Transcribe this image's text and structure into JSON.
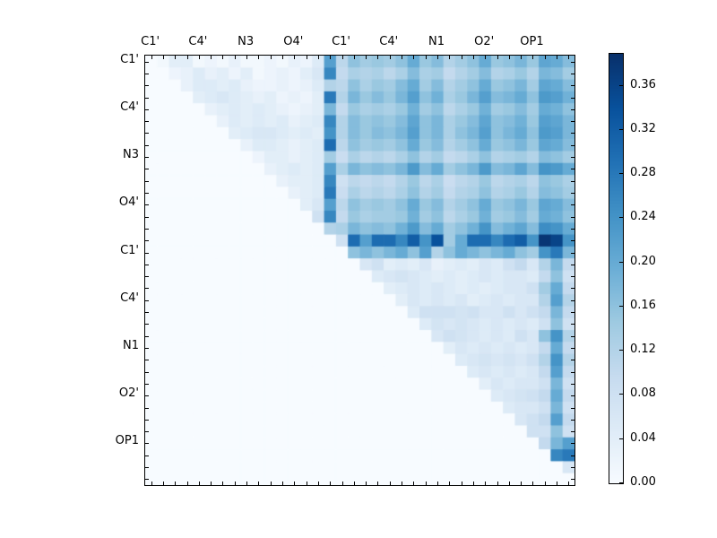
{
  "figure": {
    "background": "#ffffff",
    "frame_color": "#000000",
    "colormap_min_color": "#f7fbff",
    "colormap_max_color": "#08306b"
  },
  "chart_data": {
    "type": "heatmap",
    "title": "",
    "xlabel": "",
    "ylabel": "",
    "colormap": "Blues",
    "vmin": 0.0,
    "vmax": 0.389,
    "grid_size": 36,
    "label_every": 4,
    "axis_labels": [
      "C1'",
      "C4'",
      "N3",
      "O4'",
      "C1'",
      "C4'",
      "N1",
      "O2'",
      "OP1"
    ],
    "colorbar_tick_labels": [
      "0.00",
      "0.04",
      "0.08",
      "0.12",
      "0.16",
      "0.20",
      "0.24",
      "0.28",
      "0.32",
      "0.36"
    ],
    "colorbar_tick_values": [
      0.0,
      0.04,
      0.08,
      0.12,
      0.16,
      0.2,
      0.24,
      0.28,
      0.32,
      0.36
    ],
    "matrix": [
      [
        0,
        0.01,
        0.04,
        0.04,
        0.01,
        0.02,
        0.01,
        0.03,
        0.01,
        0.01,
        0.02,
        0.01,
        0.03,
        0.02,
        0.05,
        0.22,
        0.11,
        0.16,
        0.14,
        0.15,
        0.14,
        0.16,
        0.2,
        0.15,
        0.17,
        0.12,
        0.14,
        0.16,
        0.2,
        0.15,
        0.16,
        0.18,
        0.15,
        0.21,
        0.2,
        0.17
      ],
      [
        0,
        0,
        0.02,
        0.03,
        0.05,
        0.03,
        0.04,
        0.02,
        0.04,
        0.01,
        0.02,
        0.03,
        0.02,
        0.04,
        0.06,
        0.26,
        0.1,
        0.13,
        0.12,
        0.13,
        0.11,
        0.13,
        0.17,
        0.13,
        0.14,
        0.1,
        0.12,
        0.14,
        0.17,
        0.12,
        0.13,
        0.15,
        0.12,
        0.18,
        0.17,
        0.14
      ],
      [
        0,
        0,
        0,
        0.03,
        0.05,
        0.05,
        0.04,
        0.05,
        0.03,
        0.02,
        0.02,
        0.03,
        0.02,
        0.03,
        0.05,
        0.12,
        0.11,
        0.16,
        0.13,
        0.15,
        0.14,
        0.17,
        0.2,
        0.14,
        0.17,
        0.12,
        0.14,
        0.16,
        0.2,
        0.15,
        0.16,
        0.18,
        0.14,
        0.21,
        0.2,
        0.17
      ],
      [
        0,
        0,
        0,
        0,
        0.04,
        0.05,
        0.06,
        0.05,
        0.04,
        0.03,
        0.04,
        0.02,
        0.03,
        0.02,
        0.04,
        0.28,
        0.12,
        0.18,
        0.15,
        0.17,
        0.15,
        0.18,
        0.22,
        0.16,
        0.19,
        0.13,
        0.15,
        0.18,
        0.22,
        0.17,
        0.18,
        0.2,
        0.16,
        0.23,
        0.22,
        0.19
      ],
      [
        0,
        0,
        0,
        0,
        0,
        0.03,
        0.04,
        0.05,
        0.04,
        0.05,
        0.04,
        0.03,
        0.02,
        0.03,
        0.04,
        0.18,
        0.1,
        0.15,
        0.13,
        0.14,
        0.13,
        0.15,
        0.19,
        0.14,
        0.16,
        0.11,
        0.13,
        0.15,
        0.19,
        0.14,
        0.15,
        0.17,
        0.14,
        0.2,
        0.19,
        0.16
      ],
      [
        0,
        0,
        0,
        0,
        0,
        0,
        0.03,
        0.05,
        0.04,
        0.05,
        0.04,
        0.05,
        0.03,
        0.04,
        0.05,
        0.26,
        0.12,
        0.17,
        0.15,
        0.16,
        0.15,
        0.17,
        0.21,
        0.16,
        0.18,
        0.13,
        0.15,
        0.17,
        0.21,
        0.16,
        0.17,
        0.19,
        0.15,
        0.22,
        0.21,
        0.18
      ],
      [
        0,
        0,
        0,
        0,
        0,
        0,
        0,
        0.04,
        0.05,
        0.06,
        0.06,
        0.05,
        0.04,
        0.05,
        0.04,
        0.24,
        0.12,
        0.17,
        0.15,
        0.17,
        0.16,
        0.18,
        0.22,
        0.16,
        0.18,
        0.13,
        0.16,
        0.18,
        0.22,
        0.16,
        0.18,
        0.2,
        0.16,
        0.23,
        0.22,
        0.18
      ],
      [
        0,
        0,
        0,
        0,
        0,
        0,
        0,
        0,
        0.03,
        0.05,
        0.05,
        0.04,
        0.03,
        0.04,
        0.05,
        0.3,
        0.11,
        0.16,
        0.14,
        0.15,
        0.14,
        0.16,
        0.2,
        0.15,
        0.17,
        0.12,
        0.14,
        0.16,
        0.2,
        0.15,
        0.16,
        0.18,
        0.15,
        0.21,
        0.2,
        0.17
      ],
      [
        0,
        0,
        0,
        0,
        0,
        0,
        0,
        0,
        0,
        0.02,
        0.04,
        0.04,
        0.03,
        0.04,
        0.05,
        0.14,
        0.09,
        0.13,
        0.11,
        0.12,
        0.11,
        0.13,
        0.16,
        0.12,
        0.14,
        0.1,
        0.11,
        0.13,
        0.16,
        0.12,
        0.13,
        0.14,
        0.12,
        0.17,
        0.16,
        0.14
      ],
      [
        0,
        0,
        0,
        0,
        0,
        0,
        0,
        0,
        0,
        0,
        0.03,
        0.04,
        0.05,
        0.04,
        0.05,
        0.22,
        0.13,
        0.18,
        0.16,
        0.17,
        0.16,
        0.18,
        0.23,
        0.17,
        0.2,
        0.14,
        0.16,
        0.18,
        0.23,
        0.17,
        0.18,
        0.21,
        0.17,
        0.24,
        0.23,
        0.2
      ],
      [
        0,
        0,
        0,
        0,
        0,
        0,
        0,
        0,
        0,
        0,
        0,
        0.03,
        0.04,
        0.04,
        0.05,
        0.26,
        0.08,
        0.11,
        0.1,
        0.11,
        0.1,
        0.12,
        0.15,
        0.11,
        0.13,
        0.09,
        0.11,
        0.12,
        0.15,
        0.11,
        0.12,
        0.13,
        0.11,
        0.16,
        0.15,
        0.13
      ],
      [
        0,
        0,
        0,
        0,
        0,
        0,
        0,
        0,
        0,
        0,
        0,
        0,
        0.03,
        0.04,
        0.05,
        0.28,
        0.09,
        0.13,
        0.11,
        0.12,
        0.11,
        0.13,
        0.16,
        0.12,
        0.14,
        0.1,
        0.12,
        0.13,
        0.16,
        0.12,
        0.13,
        0.15,
        0.12,
        0.17,
        0.16,
        0.14
      ],
      [
        0,
        0,
        0,
        0,
        0,
        0,
        0,
        0,
        0,
        0,
        0,
        0,
        0,
        0.04,
        0.06,
        0.22,
        0.11,
        0.16,
        0.14,
        0.15,
        0.14,
        0.16,
        0.2,
        0.15,
        0.17,
        0.12,
        0.14,
        0.16,
        0.2,
        0.15,
        0.16,
        0.18,
        0.15,
        0.21,
        0.2,
        0.17
      ],
      [
        0,
        0,
        0,
        0,
        0,
        0,
        0,
        0,
        0,
        0,
        0,
        0,
        0,
        0,
        0.08,
        0.26,
        0.1,
        0.15,
        0.13,
        0.14,
        0.14,
        0.15,
        0.19,
        0.14,
        0.16,
        0.11,
        0.13,
        0.15,
        0.19,
        0.14,
        0.15,
        0.17,
        0.14,
        0.2,
        0.19,
        0.16
      ],
      [
        0,
        0,
        0,
        0,
        0,
        0,
        0,
        0,
        0,
        0,
        0,
        0,
        0,
        0,
        0,
        0.12,
        0.13,
        0.18,
        0.16,
        0.17,
        0.16,
        0.19,
        0.23,
        0.17,
        0.2,
        0.14,
        0.16,
        0.19,
        0.24,
        0.17,
        0.19,
        0.21,
        0.17,
        0.25,
        0.24,
        0.2
      ],
      [
        0,
        0,
        0,
        0,
        0,
        0,
        0,
        0,
        0,
        0,
        0,
        0,
        0,
        0,
        0,
        0,
        0.08,
        0.3,
        0.22,
        0.3,
        0.3,
        0.26,
        0.32,
        0.24,
        0.34,
        0.14,
        0.2,
        0.3,
        0.3,
        0.26,
        0.3,
        0.32,
        0.24,
        0.38,
        0.36,
        0.24
      ],
      [
        0,
        0,
        0,
        0,
        0,
        0,
        0,
        0,
        0,
        0,
        0,
        0,
        0,
        0,
        0,
        0,
        0,
        0.16,
        0.18,
        0.16,
        0.18,
        0.2,
        0.16,
        0.22,
        0.12,
        0.16,
        0.2,
        0.18,
        0.16,
        0.18,
        0.2,
        0.16,
        0.14,
        0.24,
        0.28,
        0.18
      ],
      [
        0,
        0,
        0,
        0,
        0,
        0,
        0,
        0,
        0,
        0,
        0,
        0,
        0,
        0,
        0,
        0,
        0,
        0,
        0.06,
        0.08,
        0.04,
        0.05,
        0.04,
        0.06,
        0.03,
        0.04,
        0.05,
        0.04,
        0.06,
        0.05,
        0.08,
        0.1,
        0.06,
        0.12,
        0.18,
        0.1
      ],
      [
        0,
        0,
        0,
        0,
        0,
        0,
        0,
        0,
        0,
        0,
        0,
        0,
        0,
        0,
        0,
        0,
        0,
        0,
        0,
        0.05,
        0.06,
        0.07,
        0.06,
        0.05,
        0.04,
        0.05,
        0.04,
        0.05,
        0.06,
        0.05,
        0.06,
        0.06,
        0.05,
        0.1,
        0.16,
        0.08
      ],
      [
        0,
        0,
        0,
        0,
        0,
        0,
        0,
        0,
        0,
        0,
        0,
        0,
        0,
        0,
        0,
        0,
        0,
        0,
        0,
        0,
        0.04,
        0.05,
        0.06,
        0.05,
        0.06,
        0.05,
        0.04,
        0.05,
        0.04,
        0.05,
        0.06,
        0.06,
        0.08,
        0.14,
        0.2,
        0.1
      ],
      [
        0,
        0,
        0,
        0,
        0,
        0,
        0,
        0,
        0,
        0,
        0,
        0,
        0,
        0,
        0,
        0,
        0,
        0,
        0,
        0,
        0,
        0.04,
        0.06,
        0.05,
        0.06,
        0.05,
        0.06,
        0.04,
        0.05,
        0.06,
        0.05,
        0.06,
        0.06,
        0.12,
        0.22,
        0.12
      ],
      [
        0,
        0,
        0,
        0,
        0,
        0,
        0,
        0,
        0,
        0,
        0,
        0,
        0,
        0,
        0,
        0,
        0,
        0,
        0,
        0,
        0,
        0,
        0.05,
        0.08,
        0.08,
        0.08,
        0.07,
        0.08,
        0.06,
        0.06,
        0.08,
        0.06,
        0.08,
        0.1,
        0.18,
        0.1
      ],
      [
        0,
        0,
        0,
        0,
        0,
        0,
        0,
        0,
        0,
        0,
        0,
        0,
        0,
        0,
        0,
        0,
        0,
        0,
        0,
        0,
        0,
        0,
        0,
        0.05,
        0.07,
        0.06,
        0.07,
        0.06,
        0.05,
        0.06,
        0.05,
        0.06,
        0.05,
        0.08,
        0.16,
        0.08
      ],
      [
        0,
        0,
        0,
        0,
        0,
        0,
        0,
        0,
        0,
        0,
        0,
        0,
        0,
        0,
        0,
        0,
        0,
        0,
        0,
        0,
        0,
        0,
        0,
        0,
        0.06,
        0.08,
        0.07,
        0.06,
        0.05,
        0.06,
        0.05,
        0.08,
        0.06,
        0.16,
        0.24,
        0.12
      ],
      [
        0,
        0,
        0,
        0,
        0,
        0,
        0,
        0,
        0,
        0,
        0,
        0,
        0,
        0,
        0,
        0,
        0,
        0,
        0,
        0,
        0,
        0,
        0,
        0,
        0,
        0.04,
        0.06,
        0.05,
        0.06,
        0.05,
        0.06,
        0.05,
        0.06,
        0.1,
        0.2,
        0.1
      ],
      [
        0,
        0,
        0,
        0,
        0,
        0,
        0,
        0,
        0,
        0,
        0,
        0,
        0,
        0,
        0,
        0,
        0,
        0,
        0,
        0,
        0,
        0,
        0,
        0,
        0,
        0,
        0.05,
        0.06,
        0.07,
        0.06,
        0.07,
        0.06,
        0.08,
        0.12,
        0.24,
        0.12
      ],
      [
        0,
        0,
        0,
        0,
        0,
        0,
        0,
        0,
        0,
        0,
        0,
        0,
        0,
        0,
        0,
        0,
        0,
        0,
        0,
        0,
        0,
        0,
        0,
        0,
        0,
        0,
        0,
        0.05,
        0.06,
        0.05,
        0.06,
        0.05,
        0.06,
        0.1,
        0.22,
        0.1
      ],
      [
        0,
        0,
        0,
        0,
        0,
        0,
        0,
        0,
        0,
        0,
        0,
        0,
        0,
        0,
        0,
        0,
        0,
        0,
        0,
        0,
        0,
        0,
        0,
        0,
        0,
        0,
        0,
        0,
        0.04,
        0.06,
        0.05,
        0.06,
        0.06,
        0.08,
        0.18,
        0.08
      ],
      [
        0,
        0,
        0,
        0,
        0,
        0,
        0,
        0,
        0,
        0,
        0,
        0,
        0,
        0,
        0,
        0,
        0,
        0,
        0,
        0,
        0,
        0,
        0,
        0,
        0,
        0,
        0,
        0,
        0,
        0.05,
        0.06,
        0.07,
        0.08,
        0.1,
        0.2,
        0.1
      ],
      [
        0,
        0,
        0,
        0,
        0,
        0,
        0,
        0,
        0,
        0,
        0,
        0,
        0,
        0,
        0,
        0,
        0,
        0,
        0,
        0,
        0,
        0,
        0,
        0,
        0,
        0,
        0,
        0,
        0,
        0,
        0.05,
        0.06,
        0.06,
        0.08,
        0.18,
        0.08
      ],
      [
        0,
        0,
        0,
        0,
        0,
        0,
        0,
        0,
        0,
        0,
        0,
        0,
        0,
        0,
        0,
        0,
        0,
        0,
        0,
        0,
        0,
        0,
        0,
        0,
        0,
        0,
        0,
        0,
        0,
        0,
        0,
        0.06,
        0.08,
        0.1,
        0.22,
        0.1
      ],
      [
        0,
        0,
        0,
        0,
        0,
        0,
        0,
        0,
        0,
        0,
        0,
        0,
        0,
        0,
        0,
        0,
        0,
        0,
        0,
        0,
        0,
        0,
        0,
        0,
        0,
        0,
        0,
        0,
        0,
        0,
        0,
        0,
        0.08,
        0.08,
        0.16,
        0.08
      ],
      [
        0,
        0,
        0,
        0,
        0,
        0,
        0,
        0,
        0,
        0,
        0,
        0,
        0,
        0,
        0,
        0,
        0,
        0,
        0,
        0,
        0,
        0,
        0,
        0,
        0,
        0,
        0,
        0,
        0,
        0,
        0,
        0,
        0,
        0.1,
        0.18,
        0.22
      ],
      [
        0,
        0,
        0,
        0,
        0,
        0,
        0,
        0,
        0,
        0,
        0,
        0,
        0,
        0,
        0,
        0,
        0,
        0,
        0,
        0,
        0,
        0,
        0,
        0,
        0,
        0,
        0,
        0,
        0,
        0,
        0,
        0,
        0,
        0,
        0.26,
        0.28
      ],
      [
        0,
        0,
        0,
        0,
        0,
        0,
        0,
        0,
        0,
        0,
        0,
        0,
        0,
        0,
        0,
        0,
        0,
        0,
        0,
        0,
        0,
        0,
        0,
        0,
        0,
        0,
        0,
        0,
        0,
        0,
        0,
        0,
        0,
        0,
        0,
        0.06
      ],
      [
        0,
        0,
        0,
        0,
        0,
        0,
        0,
        0,
        0,
        0,
        0,
        0,
        0,
        0,
        0,
        0,
        0,
        0,
        0,
        0,
        0,
        0,
        0,
        0,
        0,
        0,
        0,
        0,
        0,
        0,
        0,
        0,
        0,
        0,
        0,
        0
      ]
    ]
  }
}
